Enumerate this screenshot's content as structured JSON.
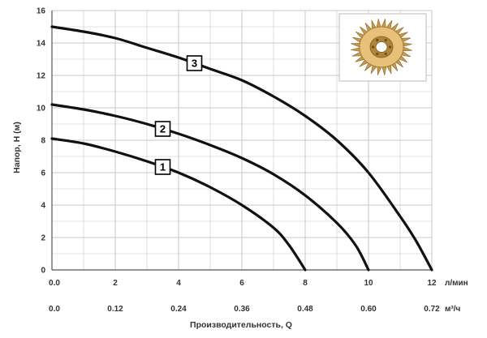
{
  "chart_data": {
    "type": "line",
    "ylabel": "Напор, H (м)",
    "xlabel": "Производительность, Q",
    "y_ticks": [
      "0",
      "2",
      "4",
      "6",
      "8",
      "10",
      "12",
      "14",
      "16"
    ],
    "x_ticks_lpm": [
      "0.0",
      "2",
      "4",
      "6",
      "8",
      "10",
      "12"
    ],
    "x_unit_lpm": "л/мин",
    "x_ticks_m3h": [
      "0.0",
      "0.12",
      "0.24",
      "0.36",
      "0.48",
      "0.60",
      "0.72"
    ],
    "x_unit_m3h": "м³/ч",
    "xlim": [
      0,
      12
    ],
    "ylim": [
      0,
      16
    ],
    "grid": true,
    "series": [
      {
        "name": "1",
        "points": [
          [
            0,
            8.1
          ],
          [
            1,
            7.8
          ],
          [
            2,
            7.3
          ],
          [
            3,
            6.7
          ],
          [
            4,
            6.0
          ],
          [
            5,
            5.1
          ],
          [
            6,
            4.0
          ],
          [
            7,
            2.6
          ],
          [
            7.5,
            1.5
          ],
          [
            8,
            0
          ]
        ]
      },
      {
        "name": "2",
        "points": [
          [
            0,
            10.2
          ],
          [
            1,
            9.9
          ],
          [
            2,
            9.5
          ],
          [
            3,
            9.0
          ],
          [
            4,
            8.4
          ],
          [
            5,
            7.7
          ],
          [
            6,
            6.9
          ],
          [
            7,
            5.9
          ],
          [
            8,
            4.6
          ],
          [
            9,
            2.9
          ],
          [
            9.6,
            1.5
          ],
          [
            10,
            0
          ]
        ]
      },
      {
        "name": "3",
        "points": [
          [
            0,
            15.0
          ],
          [
            1,
            14.7
          ],
          [
            2,
            14.3
          ],
          [
            3,
            13.7
          ],
          [
            4,
            13.1
          ],
          [
            5,
            12.4
          ],
          [
            6,
            11.7
          ],
          [
            7,
            10.7
          ],
          [
            8,
            9.5
          ],
          [
            9,
            8.0
          ],
          [
            10,
            6.0
          ],
          [
            11,
            3.3
          ],
          [
            11.5,
            1.8
          ],
          [
            12,
            0
          ]
        ]
      }
    ]
  },
  "image": {
    "name": "impeller-photo",
    "colors": {
      "outer": "#c89a4e",
      "inner": "#e7c07a",
      "hub": "#b28439"
    }
  },
  "colors": {
    "grid": "#c8c8c8",
    "curve": "#111111",
    "axis": "#555555"
  }
}
